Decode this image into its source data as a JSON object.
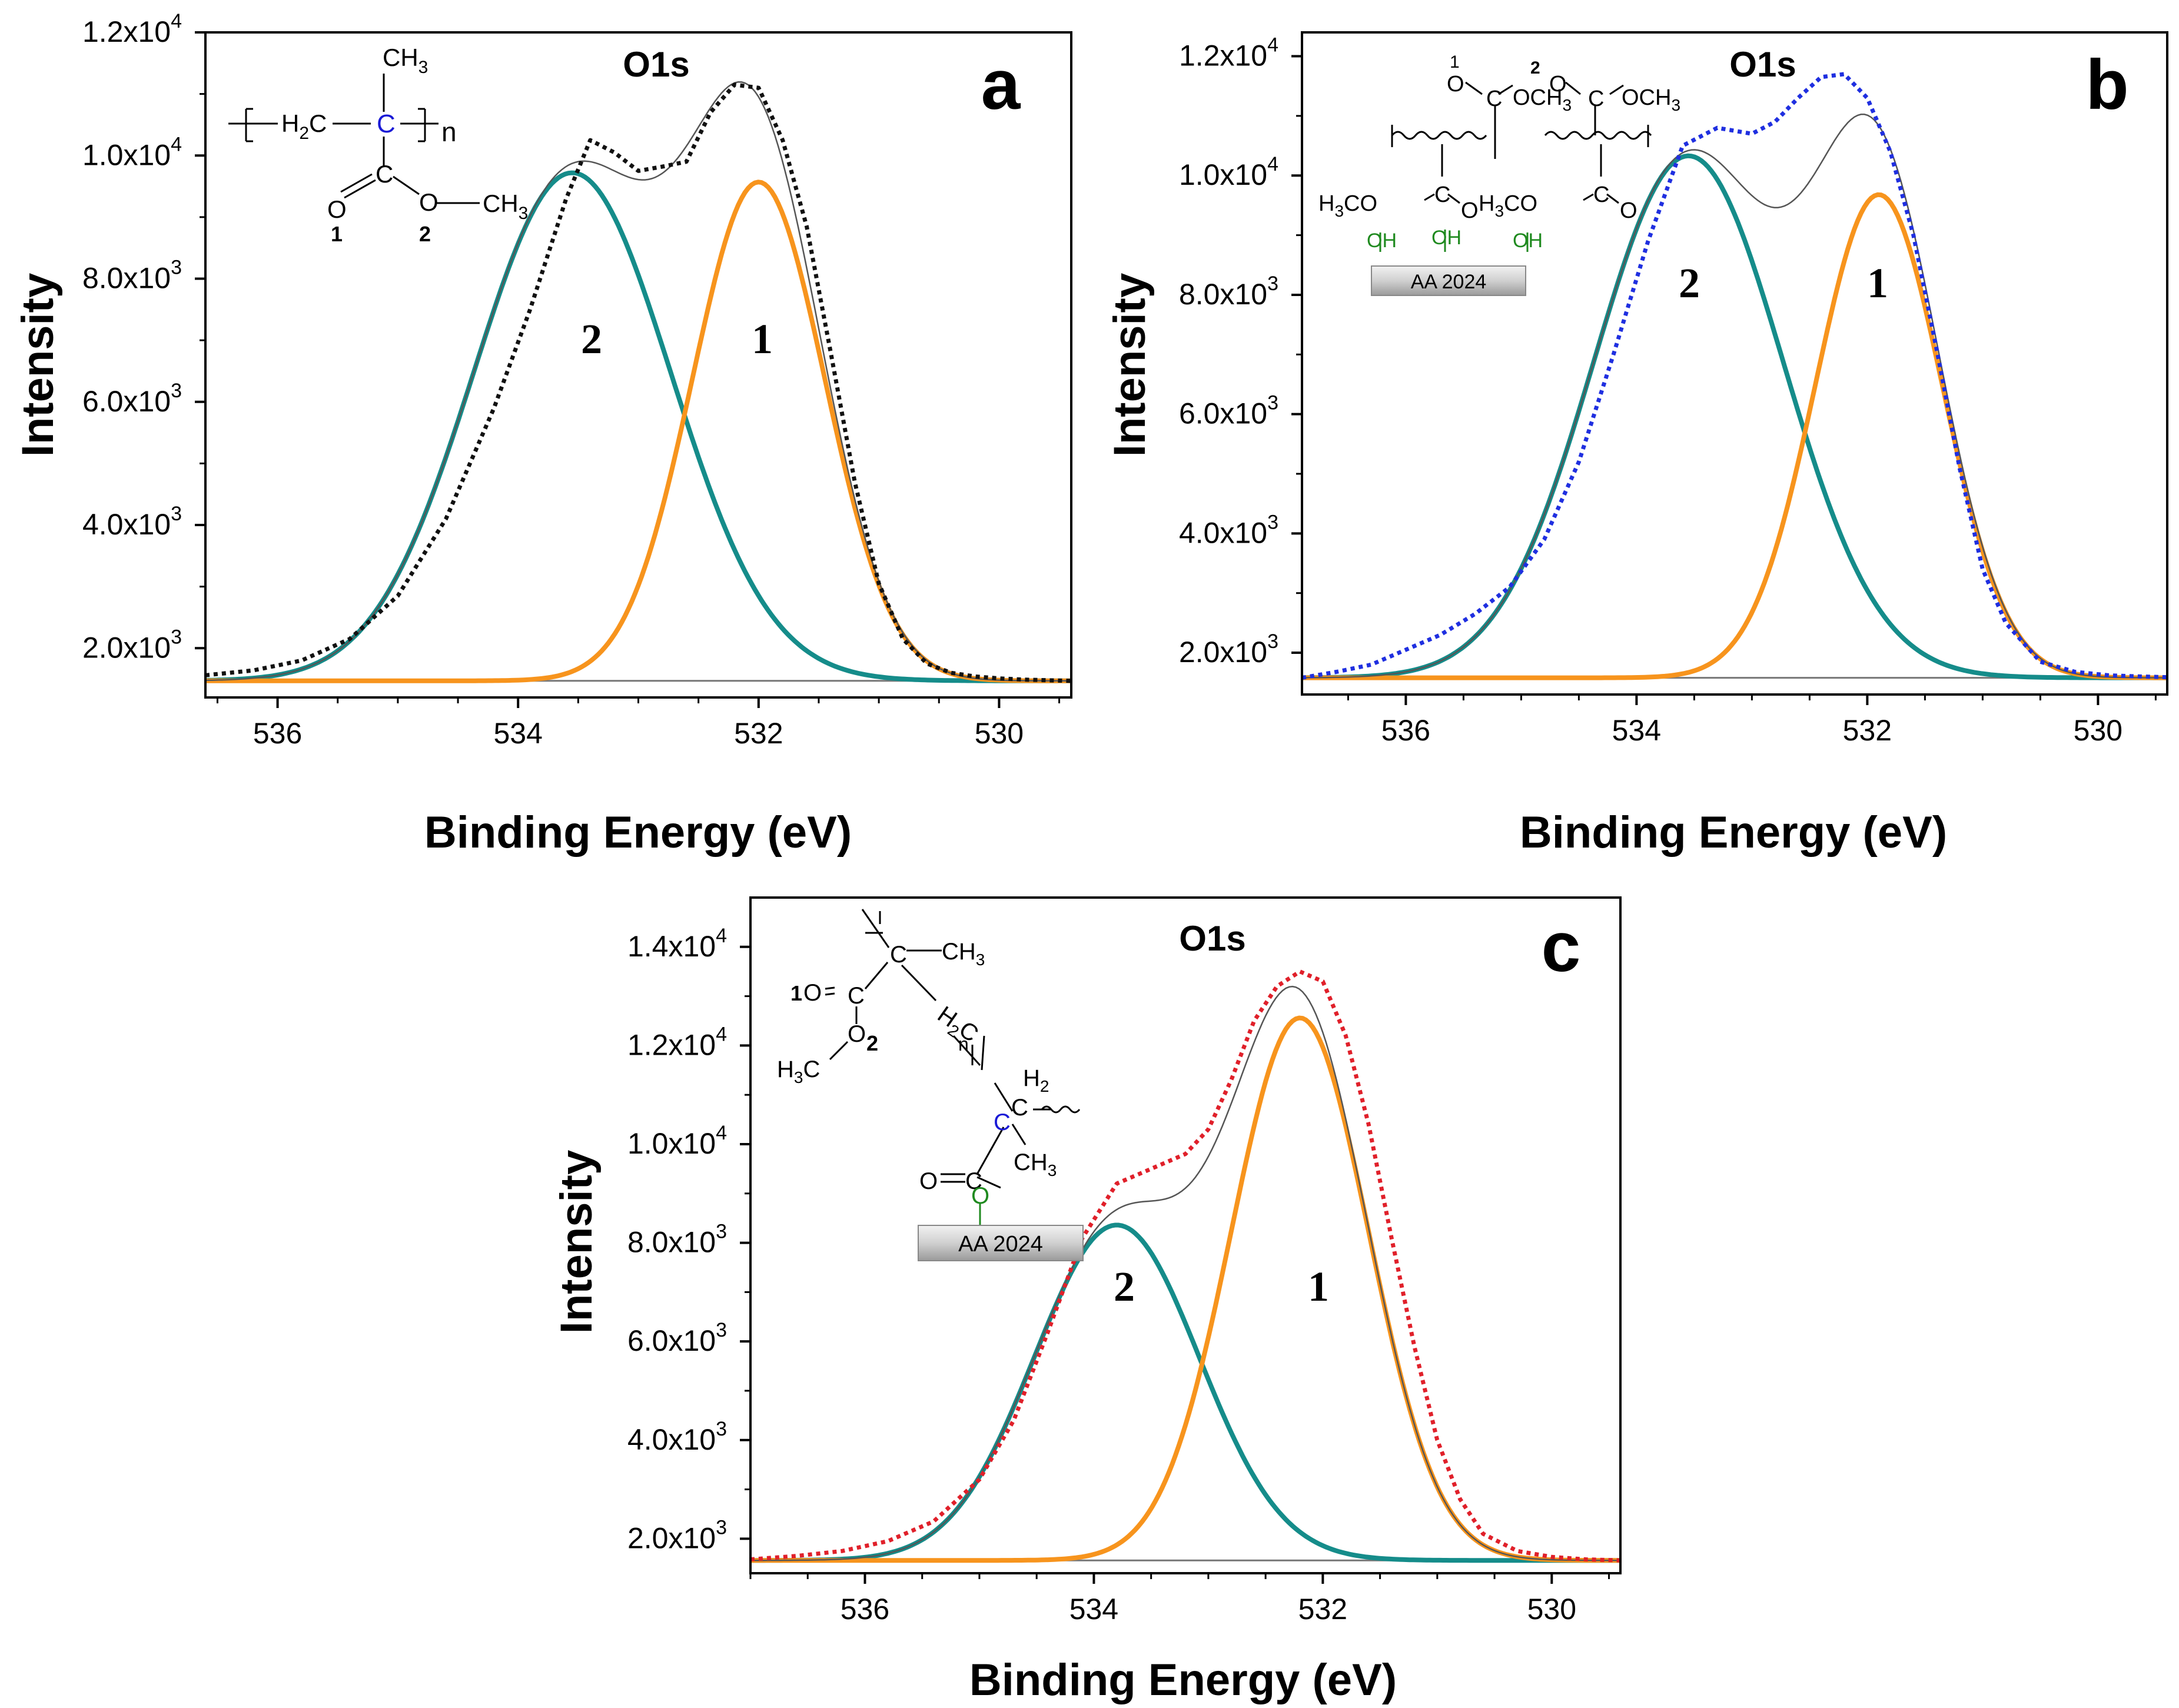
{
  "figure": {
    "colors": {
      "peak1": "#f7941d",
      "peak2": "#158c8a",
      "baseline": "#777777",
      "envelope": "#555555",
      "exp_a": "#111111",
      "exp_b": "#1f2fe0",
      "exp_c": "#e0202a"
    }
  },
  "chart_data": [
    {
      "panel": "a",
      "type": "line",
      "title": "O1s",
      "xlabel": "Binding Energy (eV)",
      "ylabel": "Intensity",
      "xlim": [
        536.6,
        529.4
      ],
      "ylim": [
        1200,
        12000
      ],
      "xticks": [
        536,
        534,
        532,
        530
      ],
      "xtick_labels": [
        "536",
        "534",
        "532",
        "530"
      ],
      "yticks": [
        2000,
        4000,
        6000,
        8000,
        10000,
        12000
      ],
      "ytick_mantissa": [
        "2.0x10",
        "4.0x10",
        "6.0x10",
        "8.0x10",
        "1.0x10",
        "1.2x10"
      ],
      "ytick_exponent": [
        "3",
        "3",
        "3",
        "3",
        "4",
        "4"
      ],
      "baseline": 1470,
      "series": [
        {
          "name": "peak 1",
          "label": "1",
          "kind": "gaussian",
          "center": 532.0,
          "amplitude": 8100,
          "sigma": 0.55
        },
        {
          "name": "peak 2",
          "label": "2",
          "kind": "gaussian",
          "center": 533.55,
          "amplitude": 8250,
          "sigma": 0.82
        },
        {
          "name": "fit envelope",
          "kind": "sum"
        },
        {
          "name": "experimental",
          "kind": "dotted",
          "x": [
            536.6,
            536.2,
            535.8,
            535.4,
            535.0,
            534.6,
            534.2,
            533.9,
            533.6,
            533.4,
            533.2,
            533.0,
            532.8,
            532.6,
            532.4,
            532.2,
            532.0,
            531.8,
            531.6,
            531.4,
            531.2,
            531.0,
            530.8,
            530.6,
            530.4,
            530.2,
            530.0,
            529.8,
            529.6,
            529.4
          ],
          "y": [
            1560,
            1640,
            1800,
            2150,
            2850,
            4100,
            5900,
            7500,
            9300,
            10250,
            10050,
            9750,
            9820,
            9900,
            10700,
            11150,
            11100,
            10250,
            8850,
            6800,
            4700,
            3050,
            2150,
            1750,
            1600,
            1540,
            1510,
            1490,
            1480,
            1470
          ]
        }
      ],
      "annotation": {
        "letter": "a",
        "chem_labels": [
          "CH",
          "3",
          "H",
          "2",
          "C",
          "C",
          "n",
          "C",
          "O",
          "O",
          "CH",
          "3",
          "1",
          "2"
        ]
      }
    },
    {
      "panel": "b",
      "type": "line",
      "title": "O1s",
      "xlabel": "Binding Energy (eV)",
      "ylabel": "Intensity",
      "xlim": [
        536.9,
        529.4
      ],
      "ylim": [
        1300,
        12400
      ],
      "xticks": [
        536,
        534,
        532,
        530
      ],
      "xtick_labels": [
        "536",
        "534",
        "532",
        "530"
      ],
      "yticks": [
        2000,
        4000,
        6000,
        8000,
        10000,
        12000
      ],
      "ytick_mantissa": [
        "2.0x10",
        "4.0x10",
        "6.0x10",
        "8.0x10",
        "1.0x10",
        "1.2x10"
      ],
      "ytick_exponent": [
        "3",
        "3",
        "3",
        "3",
        "4",
        "4"
      ],
      "baseline": 1580,
      "series": [
        {
          "name": "peak 1",
          "label": "1",
          "kind": "gaussian",
          "center": 531.9,
          "amplitude": 8100,
          "sigma": 0.55
        },
        {
          "name": "peak 2",
          "label": "2",
          "kind": "gaussian",
          "center": 533.55,
          "amplitude": 8750,
          "sigma": 0.82
        },
        {
          "name": "fit envelope",
          "kind": "sum"
        },
        {
          "name": "experimental",
          "kind": "dotted",
          "x": [
            536.9,
            536.6,
            536.3,
            536.0,
            535.7,
            535.4,
            535.1,
            534.8,
            534.5,
            534.2,
            533.9,
            533.6,
            533.3,
            533.0,
            532.8,
            532.6,
            532.4,
            532.2,
            532.0,
            531.8,
            531.6,
            531.4,
            531.2,
            531.0,
            530.8,
            530.5,
            530.2,
            529.9,
            529.6,
            529.4
          ],
          "y": [
            1580,
            1680,
            1800,
            2050,
            2300,
            2650,
            3100,
            3900,
            5200,
            7000,
            8900,
            10500,
            10800,
            10700,
            10900,
            11300,
            11650,
            11700,
            11300,
            10400,
            9000,
            7100,
            5100,
            3400,
            2500,
            1850,
            1680,
            1620,
            1600,
            1590
          ]
        }
      ],
      "annotation": {
        "letter": "b",
        "chem_labels": [
          "1",
          "2",
          "O",
          "C",
          "OCH",
          "3",
          "O",
          "C",
          "OCH",
          "3",
          "H",
          "3",
          "CO",
          "C",
          "O",
          "H",
          "3",
          "CO",
          "C",
          "O",
          "OH",
          "OH",
          "OH",
          "AA 2024"
        ]
      }
    },
    {
      "panel": "c",
      "type": "line",
      "title": "O1s",
      "xlabel": "Binding Energy (eV)",
      "ylabel": "Intensity",
      "xlim": [
        537.0,
        529.4
      ],
      "ylim": [
        1300,
        15000
      ],
      "xticks": [
        536,
        534,
        532,
        530
      ],
      "xtick_labels": [
        "536",
        "534",
        "532",
        "530"
      ],
      "yticks": [
        2000,
        4000,
        6000,
        8000,
        10000,
        12000,
        14000
      ],
      "ytick_mantissa": [
        "2.0x10",
        "4.0x10",
        "6.0x10",
        "8.0x10",
        "1.0x10",
        "1.2x10",
        "1.4x10"
      ],
      "ytick_exponent": [
        "3",
        "3",
        "3",
        "3",
        "4",
        "4",
        "4"
      ],
      "baseline": 1560,
      "series": [
        {
          "name": "peak 1",
          "label": "1",
          "kind": "gaussian",
          "center": 532.2,
          "amplitude": 11000,
          "sigma": 0.6
        },
        {
          "name": "peak 2",
          "label": "2",
          "kind": "gaussian",
          "center": 533.8,
          "amplitude": 6800,
          "sigma": 0.72
        },
        {
          "name": "fit envelope",
          "kind": "sum"
        },
        {
          "name": "experimental",
          "kind": "dotted",
          "x": [
            537.0,
            536.6,
            536.2,
            535.8,
            535.4,
            535.0,
            534.7,
            534.4,
            534.1,
            533.8,
            533.5,
            533.2,
            533.0,
            532.8,
            532.6,
            532.4,
            532.2,
            532.0,
            531.8,
            531.6,
            531.4,
            531.2,
            531.0,
            530.8,
            530.6,
            530.3,
            530.0,
            529.7,
            529.4
          ],
          "y": [
            1580,
            1650,
            1750,
            1950,
            2350,
            3200,
            4400,
            6200,
            8100,
            9200,
            9500,
            9800,
            10300,
            11300,
            12500,
            13200,
            13500,
            13300,
            12200,
            10400,
            8100,
            5900,
            4000,
            2800,
            2100,
            1750,
            1630,
            1580,
            1560
          ]
        }
      ],
      "annotation": {
        "letter": "c",
        "chem_labels": [
          "C",
          "CH",
          "3",
          "1",
          "O",
          "C",
          "O",
          "2",
          "H",
          "3",
          "C",
          "H",
          "2",
          "C",
          "n",
          "H",
          "2",
          "C",
          "C",
          "CH",
          "3",
          "O",
          "C",
          "O",
          "AA 2024"
        ]
      }
    }
  ]
}
